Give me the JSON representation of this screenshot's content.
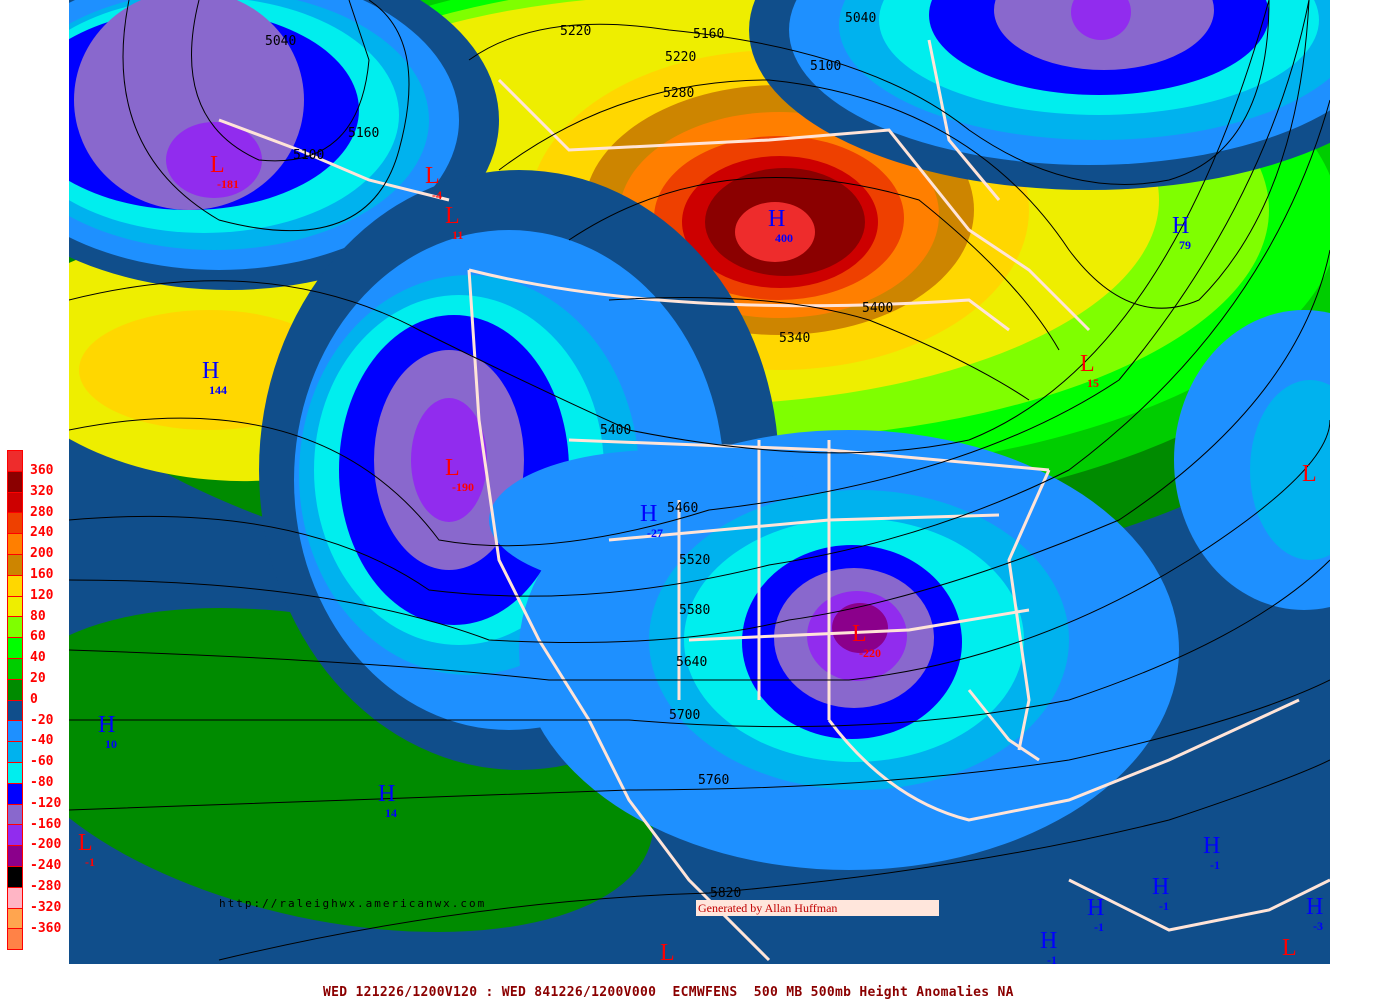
{
  "title": "500 MB 500mb Height Anomalies NA",
  "footer": "WED 121226/1200V120 : WED 841226/1200V000  ECMWFENS  500 MB 500mb Height Anomalies NA",
  "source_url": "http://raleighwx.americanwx.com",
  "credit": "Generated by Allan Huffman",
  "legend": [
    {
      "label": "360",
      "color": "#EE2C2C"
    },
    {
      "label": "320",
      "color": "#8B0000"
    },
    {
      "label": "280",
      "color": "#CD0000"
    },
    {
      "label": "240",
      "color": "#EE4000"
    },
    {
      "label": "200",
      "color": "#FF7F00"
    },
    {
      "label": "160",
      "color": "#CD8500"
    },
    {
      "label": "120",
      "color": "#FFD700"
    },
    {
      "label": "80",
      "color": "#EEEE00"
    },
    {
      "label": "60",
      "color": "#7FFF00"
    },
    {
      "label": "40",
      "color": "#00FF00"
    },
    {
      "label": "20",
      "color": "#00CD00"
    },
    {
      "label": "0",
      "color": "#008B00"
    },
    {
      "label": "-20",
      "color": "#104E8B"
    },
    {
      "label": "-40",
      "color": "#1E90FF"
    },
    {
      "label": "-60",
      "color": "#00B2EE"
    },
    {
      "label": "-80",
      "color": "#00EEEE"
    },
    {
      "label": "-120",
      "color": "#0000FF"
    },
    {
      "label": "-160",
      "color": "#8968CD"
    },
    {
      "label": "-200",
      "color": "#912CEE"
    },
    {
      "label": "-240",
      "color": "#8B008B"
    },
    {
      "label": "-280",
      "color": "#000000"
    },
    {
      "label": "-320",
      "color": "#FFB5C5"
    },
    {
      "label": "-360",
      "color": "#FFA54F"
    },
    {
      "label": "",
      "color": "#FF8247"
    }
  ],
  "centers": [
    {
      "type": "L",
      "value": "-181"
    },
    {
      "type": "L",
      "value": "-4"
    },
    {
      "type": "L",
      "value": "11"
    },
    {
      "type": "H",
      "value": "400"
    },
    {
      "type": "H",
      "value": "79"
    },
    {
      "type": "H",
      "value": "144"
    },
    {
      "type": "L",
      "value": "15"
    },
    {
      "type": "L",
      "value": "-190"
    },
    {
      "type": "H",
      "value": "-27"
    },
    {
      "type": "L",
      "value": "-220"
    },
    {
      "type": "L",
      "value": ""
    },
    {
      "type": "H",
      "value": "10"
    },
    {
      "type": "H",
      "value": "14"
    },
    {
      "type": "L",
      "value": "-1"
    },
    {
      "type": "H",
      "value": "-1"
    },
    {
      "type": "H",
      "value": "-1"
    },
    {
      "type": "H",
      "value": "-1"
    },
    {
      "type": "H",
      "value": "-1"
    },
    {
      "type": "H",
      "value": "-3"
    },
    {
      "type": "L",
      "value": ""
    },
    {
      "type": "L",
      "value": ""
    }
  ],
  "contour_labels": [
    "5040",
    "5220",
    "5160",
    "5220",
    "5040",
    "5100",
    "5280",
    "5160",
    "5100",
    "5400",
    "5340",
    "5400",
    "5460",
    "5520",
    "5580",
    "5640",
    "5700",
    "5760",
    "5820"
  ],
  "center_colors": {
    "H": "#0000FF",
    "L": "#FF0000"
  }
}
